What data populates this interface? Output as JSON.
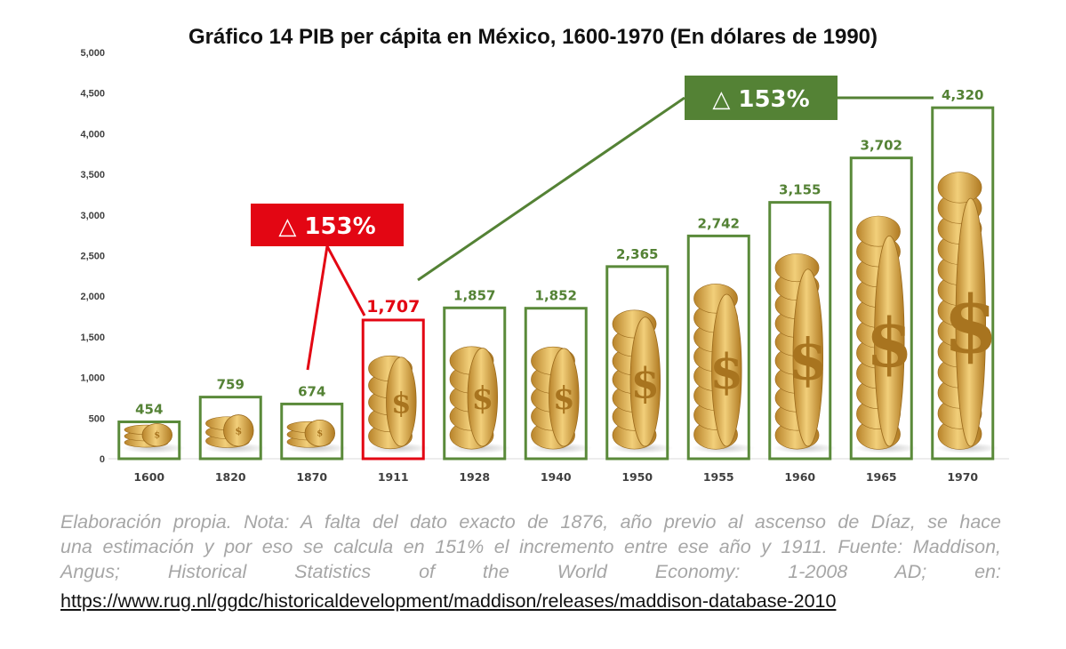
{
  "title": "Gráfico 14 PIB per cápita en México, 1600-1970 (En dólares de 1990)",
  "chart_data": {
    "type": "bar",
    "title": "Gráfico 14 PIB per cápita en México, 1600-1970 (En dólares de 1990)",
    "xlabel": "",
    "ylabel": "",
    "ylim": [
      0,
      5000
    ],
    "yticks": [
      0,
      500,
      1000,
      1500,
      2000,
      2500,
      3000,
      3500,
      4000,
      4500,
      5000
    ],
    "ytick_labels": [
      "0",
      "500",
      "1,000",
      "1,500",
      "2,000",
      "2,500",
      "3,000",
      "3,500",
      "4,000",
      "4,500",
      "5,000"
    ],
    "categories": [
      "1600",
      "1820",
      "1870",
      "1911",
      "1928",
      "1940",
      "1950",
      "1955",
      "1960",
      "1965",
      "1970"
    ],
    "values": [
      454,
      759,
      674,
      1707,
      1857,
      1852,
      2365,
      2742,
      3155,
      3702,
      4320
    ],
    "data_labels": [
      "454",
      "759",
      "674",
      "1,707",
      "1,857",
      "1,852",
      "2,365",
      "2,742",
      "3,155",
      "3,702",
      "4,320"
    ],
    "highlight_category": "1911",
    "grid": false,
    "colors": {
      "bar_outline": "#5a8a3a",
      "highlight": "#e30613",
      "label_green": "#548235",
      "badge_green": "#548235",
      "badge_red": "#e30613",
      "coin": "#d9a441"
    },
    "annotations": [
      {
        "text": "△ 153%",
        "color": "#e30613",
        "points_to": [
          "1870",
          "1911"
        ]
      },
      {
        "text": "△ 153%",
        "color": "#548235",
        "points_to": [
          "1911",
          "1970"
        ]
      }
    ]
  },
  "caption": {
    "lines": [
      "Elaboración propia. Nota: A falta del dato exacto de 1876, año previo al ascenso de Díaz, se hace",
      "una estimación y por eso se calcula en 151% el incremento entre ese año y 1911. Fuente: Maddison,",
      "Angus; Historical Statistics of the World Economy: 1-2008 AD; en:"
    ],
    "url": "https://www.rug.nl/ggdc/historicaldevelopment/maddison/releases/maddison-database-2010"
  }
}
